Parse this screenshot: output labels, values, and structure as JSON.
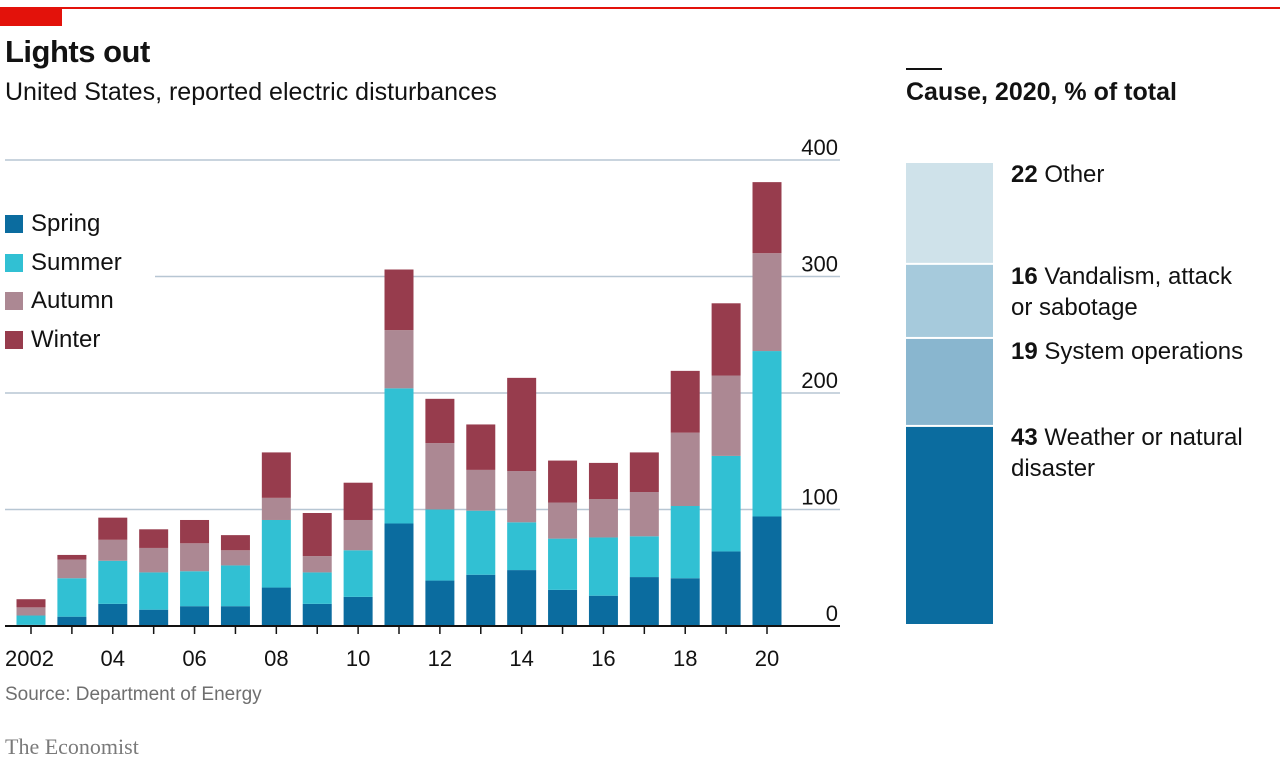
{
  "header": {
    "title": "Lights out",
    "subtitle": "United States, reported electric disturbances"
  },
  "footer": {
    "source": "Source: Department of Energy",
    "brand": "The Economist"
  },
  "colors": {
    "Spring": "#0b6c9f",
    "Summer": "#31c0d3",
    "Autumn": "#ac8893",
    "Winter": "#973c4d",
    "accent": "#e3120b",
    "grid": "#b7c6d3"
  },
  "chart_data": [
    {
      "type": "bar",
      "stacked": true,
      "title": "Lights out",
      "subtitle": "United States, reported electric disturbances",
      "x": [
        2002,
        2003,
        2004,
        2005,
        2006,
        2007,
        2008,
        2009,
        2010,
        2011,
        2012,
        2013,
        2014,
        2015,
        2016,
        2017,
        2018,
        2019,
        2020
      ],
      "x_tick_labels": [
        "2002",
        "",
        "04",
        "",
        "06",
        "",
        "08",
        "",
        "10",
        "",
        "12",
        "",
        "14",
        "",
        "16",
        "",
        "18",
        "",
        "20"
      ],
      "y_ticks": [
        0,
        100,
        200,
        300,
        400
      ],
      "ylim": [
        0,
        400
      ],
      "y_axis_side": "right",
      "grid": true,
      "legend_placement": "top-left",
      "series": [
        {
          "name": "Spring",
          "values": [
            1,
            8,
            19,
            14,
            17,
            17,
            33,
            19,
            25,
            88,
            39,
            44,
            48,
            31,
            26,
            42,
            41,
            64,
            94
          ]
        },
        {
          "name": "Summer",
          "values": [
            8,
            33,
            37,
            32,
            30,
            35,
            58,
            27,
            40,
            116,
            61,
            55,
            41,
            44,
            50,
            35,
            62,
            82,
            142
          ]
        },
        {
          "name": "Autumn",
          "values": [
            7,
            16,
            18,
            21,
            24,
            13,
            19,
            14,
            26,
            50,
            57,
            35,
            44,
            31,
            33,
            38,
            63,
            69,
            84
          ]
        },
        {
          "name": "Winter",
          "values": [
            7,
            4,
            19,
            16,
            20,
            13,
            39,
            37,
            32,
            52,
            38,
            39,
            80,
            36,
            31,
            34,
            53,
            62,
            61
          ]
        }
      ]
    },
    {
      "type": "bar",
      "stacked": true,
      "title": "Cause, 2020, % of total",
      "segments": [
        {
          "label": "Weather or natural disaster",
          "value": 43,
          "color": "#0b6c9f"
        },
        {
          "label": "System operations",
          "value": 19,
          "color": "#89b6cf"
        },
        {
          "label": "Vandalism, attack or sabotage",
          "value": 16,
          "color": "#a6cadc"
        },
        {
          "label": "Other",
          "value": 22,
          "color": "#cfe2ea"
        }
      ]
    }
  ]
}
